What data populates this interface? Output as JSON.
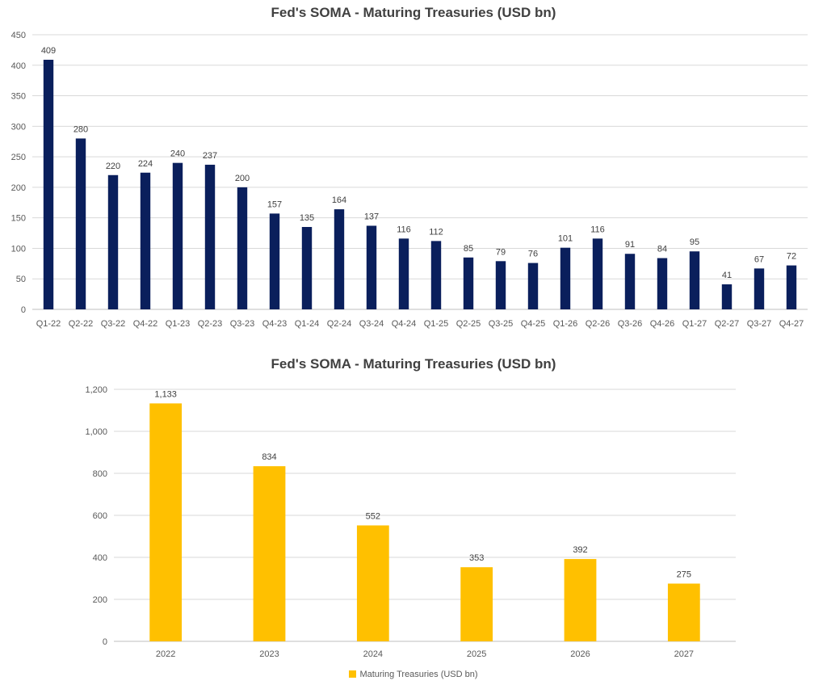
{
  "chart_data": [
    {
      "type": "bar",
      "title": "Fed's SOMA - Maturing Treasuries (USD bn)",
      "categories": [
        "Q1-22",
        "Q2-22",
        "Q3-22",
        "Q4-22",
        "Q1-23",
        "Q2-23",
        "Q3-23",
        "Q4-23",
        "Q1-24",
        "Q2-24",
        "Q3-24",
        "Q4-24",
        "Q1-25",
        "Q2-25",
        "Q3-25",
        "Q4-25",
        "Q1-26",
        "Q2-26",
        "Q3-26",
        "Q4-26",
        "Q1-27",
        "Q2-27",
        "Q3-27",
        "Q4-27"
      ],
      "values": [
        409,
        280,
        220,
        224,
        240,
        237,
        200,
        157,
        135,
        164,
        137,
        116,
        112,
        85,
        79,
        76,
        101,
        116,
        91,
        84,
        95,
        41,
        67,
        72
      ],
      "value_labels": [
        "409",
        "280",
        "220",
        "224",
        "240",
        "237",
        "200",
        "157",
        "135",
        "164",
        "137",
        "116",
        "112",
        "85",
        "79",
        "76",
        "101",
        "116",
        "91",
        "84",
        "95",
        "41",
        "67",
        "72"
      ],
      "yticks": [
        "0",
        "50",
        "100",
        "150",
        "200",
        "250",
        "300",
        "350",
        "400",
        "450"
      ],
      "ylim": [
        0,
        450
      ],
      "color": "#0a1f5c",
      "grid": true,
      "legend": null
    },
    {
      "type": "bar",
      "title": "Fed's SOMA - Maturing Treasuries (USD bn)",
      "categories": [
        "2022",
        "2023",
        "2024",
        "2025",
        "2026",
        "2027"
      ],
      "series": [
        {
          "name": "Maturing Treasuries (USD bn)",
          "values": [
            1133,
            834,
            552,
            353,
            392,
            275
          ],
          "value_labels": [
            "1,133",
            "834",
            "552",
            "353",
            "392",
            "275"
          ]
        }
      ],
      "yticks": [
        "0",
        "200",
        "400",
        "600",
        "800",
        "1,000",
        "1,200"
      ],
      "ylim": [
        0,
        1200
      ],
      "color": "#ffc000",
      "grid": true,
      "legend": "bottom"
    }
  ]
}
